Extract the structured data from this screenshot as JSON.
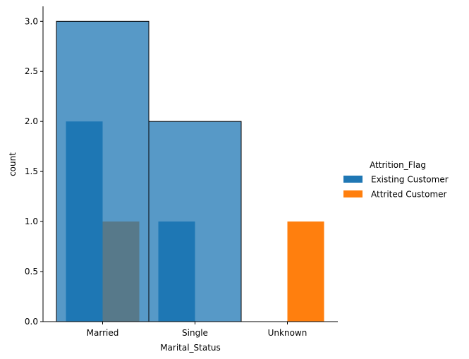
{
  "chart_data": {
    "type": "bar",
    "categories": [
      "Married",
      "Single",
      "Unknown"
    ],
    "xlabel": "Marital_Status",
    "ylabel": "count",
    "ylim": [
      0,
      3.15
    ],
    "yticks": [
      "0.0",
      "0.5",
      "1.0",
      "1.5",
      "2.0",
      "2.5",
      "3.0"
    ],
    "grid": false,
    "legend_placement": "right",
    "legend_title": "Attrition_Flag",
    "series": [
      {
        "name": "Existing Customer",
        "values": [
          2,
          1,
          0
        ],
        "color": "#1f77b4"
      },
      {
        "name": "Attrited Customer",
        "values": [
          1,
          0,
          1
        ],
        "color": "#ff7f0e"
      }
    ],
    "overlay_totals": {
      "values": [
        3,
        2
      ],
      "color": "#1f77b4",
      "alpha": 0.75,
      "edgecolor": "#000000"
    }
  }
}
